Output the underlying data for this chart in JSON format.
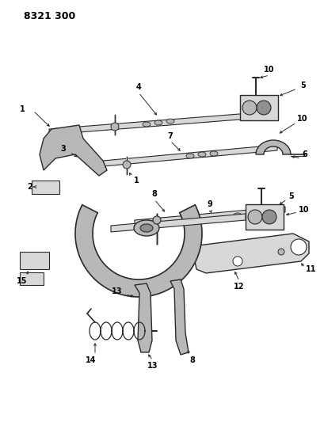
{
  "title": "8321 300",
  "bg_color": "#ffffff",
  "line_color": "#2a2a2a",
  "label_color": "#000000",
  "fig_width": 4.1,
  "fig_height": 5.33,
  "dpi": 100,
  "lw": 1.0,
  "gray_light": "#d8d8d8",
  "gray_mid": "#b8b8b8",
  "gray_dark": "#909090"
}
